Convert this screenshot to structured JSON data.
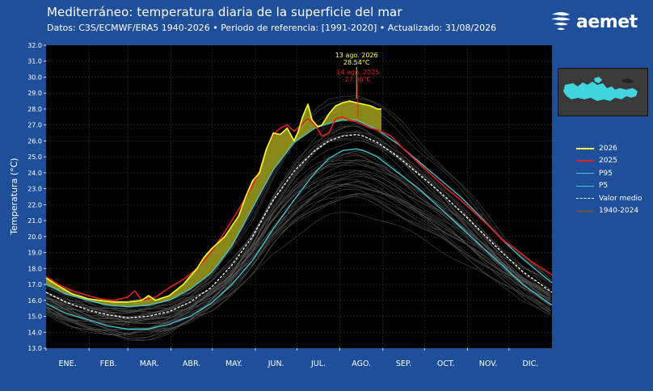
{
  "header": {
    "title": "Mediterráneo: temperatura diaria de la superficie del mar",
    "subtitle": "Datos: C3S/ECMWF/ERA5 1940-2026   •   Periodo de referencia: [1991-2020]   •   Actualizado: 31/08/2026"
  },
  "logo": {
    "text": "aemet"
  },
  "colors": {
    "background": "#1f4f9a",
    "plot_bg": "#000000",
    "y2026": "#ffff33",
    "y2025": "#e0201f",
    "p95": "#3ec9d6",
    "p5": "#3ec9d6",
    "mean": "#ffffff",
    "history": "#555555",
    "map_sea": "#3fd6e0",
    "map_land": "#4a4a4a"
  },
  "chart_data": {
    "type": "line",
    "ylabel": "Temperatura (°C)",
    "ylim": [
      13.0,
      32.0
    ],
    "yticks": [
      "13.0",
      "14.0",
      "15.0",
      "16.0",
      "17.0",
      "18.0",
      "19.0",
      "20.0",
      "21.0",
      "22.0",
      "23.0",
      "24.0",
      "25.0",
      "26.0",
      "27.0",
      "28.0",
      "29.0",
      "30.0",
      "31.0",
      "32.0"
    ],
    "xlim": [
      1,
      366
    ],
    "months": [
      "ENE.",
      "FEB.",
      "MAR.",
      "ABR.",
      "MAY.",
      "JUN.",
      "JUL.",
      "AGO.",
      "SEP.",
      "OCT.",
      "NOV.",
      "DIC."
    ],
    "grid": true,
    "x_units": "day of year",
    "series": [
      {
        "name": "2026",
        "color": "#ffff33",
        "x": [
          1,
          10,
          20,
          31,
          40,
          50,
          60,
          70,
          75,
          80,
          90,
          100,
          105,
          110,
          115,
          120,
          130,
          140,
          145,
          150,
          155,
          160,
          165,
          170,
          175,
          180,
          183,
          186,
          190,
          193,
          197,
          200,
          205,
          210,
          215,
          220,
          225,
          230,
          235,
          240,
          243
        ],
        "y": [
          17.4,
          16.9,
          16.4,
          16.1,
          16.0,
          15.9,
          15.9,
          16.0,
          16.3,
          16.0,
          16.3,
          17.0,
          17.5,
          18.0,
          18.7,
          19.2,
          20.0,
          21.3,
          22.5,
          23.5,
          24.0,
          25.5,
          26.5,
          26.4,
          26.8,
          26.0,
          26.6,
          27.5,
          28.3,
          27.3,
          26.9,
          27.0,
          27.7,
          28.2,
          28.4,
          28.5,
          28.4,
          28.3,
          28.2,
          28.0,
          28.0
        ]
      },
      {
        "name": "2025",
        "color": "#e0201f",
        "x": [
          1,
          10,
          20,
          31,
          40,
          50,
          60,
          65,
          70,
          80,
          90,
          100,
          110,
          120,
          130,
          140,
          150,
          155,
          160,
          165,
          170,
          175,
          180,
          185,
          190,
          195,
          200,
          205,
          210,
          215,
          220,
          225,
          230,
          235,
          240,
          250,
          260,
          270,
          280,
          290,
          300,
          310,
          320,
          330,
          340,
          350,
          366
        ],
        "y": [
          17.5,
          17.0,
          16.6,
          16.3,
          16.1,
          16.0,
          16.2,
          16.6,
          16.0,
          16.2,
          16.8,
          17.3,
          18.0,
          19.0,
          20.3,
          21.7,
          23.2,
          24.1,
          25.5,
          26.4,
          26.8,
          27.0,
          26.6,
          27.0,
          27.4,
          27.0,
          26.3,
          26.5,
          27.4,
          27.5,
          27.3,
          27.2,
          27.0,
          26.8,
          26.7,
          26.3,
          25.4,
          24.6,
          23.8,
          23.0,
          22.3,
          21.5,
          20.7,
          19.8,
          19.2,
          18.5,
          17.6
        ]
      },
      {
        "name": "P95",
        "color": "#3ec9d6",
        "x": [
          1,
          15,
          31,
          45,
          60,
          75,
          90,
          105,
          120,
          135,
          150,
          165,
          180,
          195,
          205,
          215,
          225,
          230,
          240,
          255,
          270,
          285,
          300,
          315,
          330,
          345,
          366
        ],
        "y": [
          17.0,
          16.4,
          16.0,
          15.7,
          15.6,
          15.7,
          16.0,
          16.7,
          17.7,
          19.4,
          21.8,
          24.2,
          25.9,
          26.8,
          27.1,
          27.3,
          27.3,
          27.1,
          26.7,
          25.8,
          24.7,
          23.6,
          22.5,
          21.2,
          19.8,
          18.6,
          17.1
        ]
      },
      {
        "name": "P5",
        "color": "#3ec9d6",
        "x": [
          1,
          15,
          31,
          45,
          60,
          75,
          90,
          105,
          120,
          135,
          150,
          165,
          180,
          195,
          205,
          215,
          225,
          230,
          240,
          255,
          270,
          285,
          300,
          315,
          330,
          345,
          366
        ],
        "y": [
          15.8,
          15.2,
          14.8,
          14.4,
          14.2,
          14.2,
          14.5,
          15.0,
          15.8,
          17.0,
          18.5,
          20.5,
          22.3,
          24.0,
          24.9,
          25.4,
          25.5,
          25.4,
          25.0,
          24.0,
          23.0,
          21.8,
          20.6,
          19.4,
          18.2,
          17.0,
          15.7
        ]
      },
      {
        "name": "Valor medio",
        "color": "#ffffff",
        "dashed": true,
        "x": [
          1,
          15,
          31,
          45,
          60,
          75,
          90,
          105,
          120,
          135,
          150,
          165,
          180,
          195,
          205,
          215,
          225,
          230,
          240,
          255,
          270,
          285,
          300,
          315,
          330,
          345,
          366
        ],
        "y": [
          16.5,
          15.9,
          15.4,
          15.1,
          14.9,
          15.0,
          15.3,
          15.9,
          16.8,
          18.2,
          20.0,
          22.3,
          24.1,
          25.4,
          26.0,
          26.3,
          26.4,
          26.3,
          25.9,
          25.0,
          23.9,
          22.8,
          21.6,
          20.3,
          19.0,
          17.8,
          16.5
        ]
      },
      {
        "name": "1940-2024",
        "color": "#555555"
      }
    ],
    "annotations": [
      {
        "text": "13 ago. 2026",
        "value_text": "28.54°C",
        "x": 225,
        "y": 28.54,
        "color": "#ffff33"
      },
      {
        "text": "14 ago. 2025",
        "value_text": "27.36°C",
        "x": 226,
        "y": 27.36,
        "color": "#e0201f"
      }
    ],
    "legend_position": "right"
  }
}
